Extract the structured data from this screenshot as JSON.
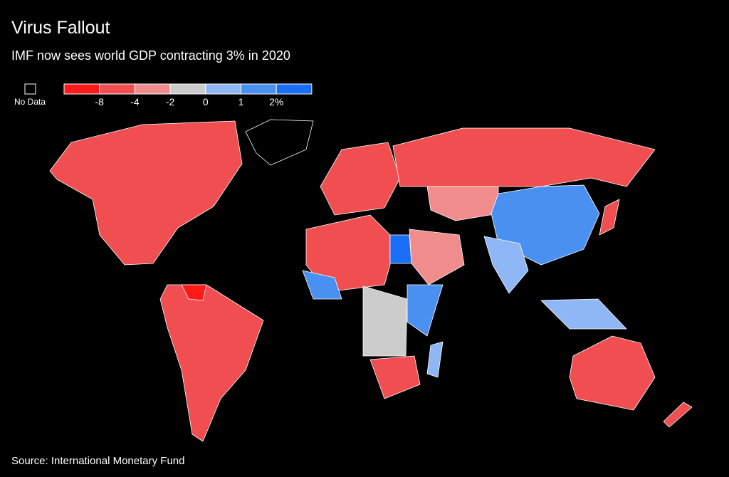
{
  "header": {
    "title": "Virus Fallout",
    "subtitle": "IMF now sees world GDP contracting 3% in 2020"
  },
  "legend": {
    "no_data_label": "No Data",
    "colors": [
      "#ff1a1a",
      "#f04e50",
      "#f08c8c",
      "#cccccc",
      "#8fb6f5",
      "#4a90f0",
      "#1a6ef5"
    ],
    "ticks": [
      -8,
      -4,
      -2,
      0,
      1,
      {
        "value": 2,
        "label": "2%"
      }
    ]
  },
  "footer": {
    "source": "Source: International Monetary Fund"
  }
}
